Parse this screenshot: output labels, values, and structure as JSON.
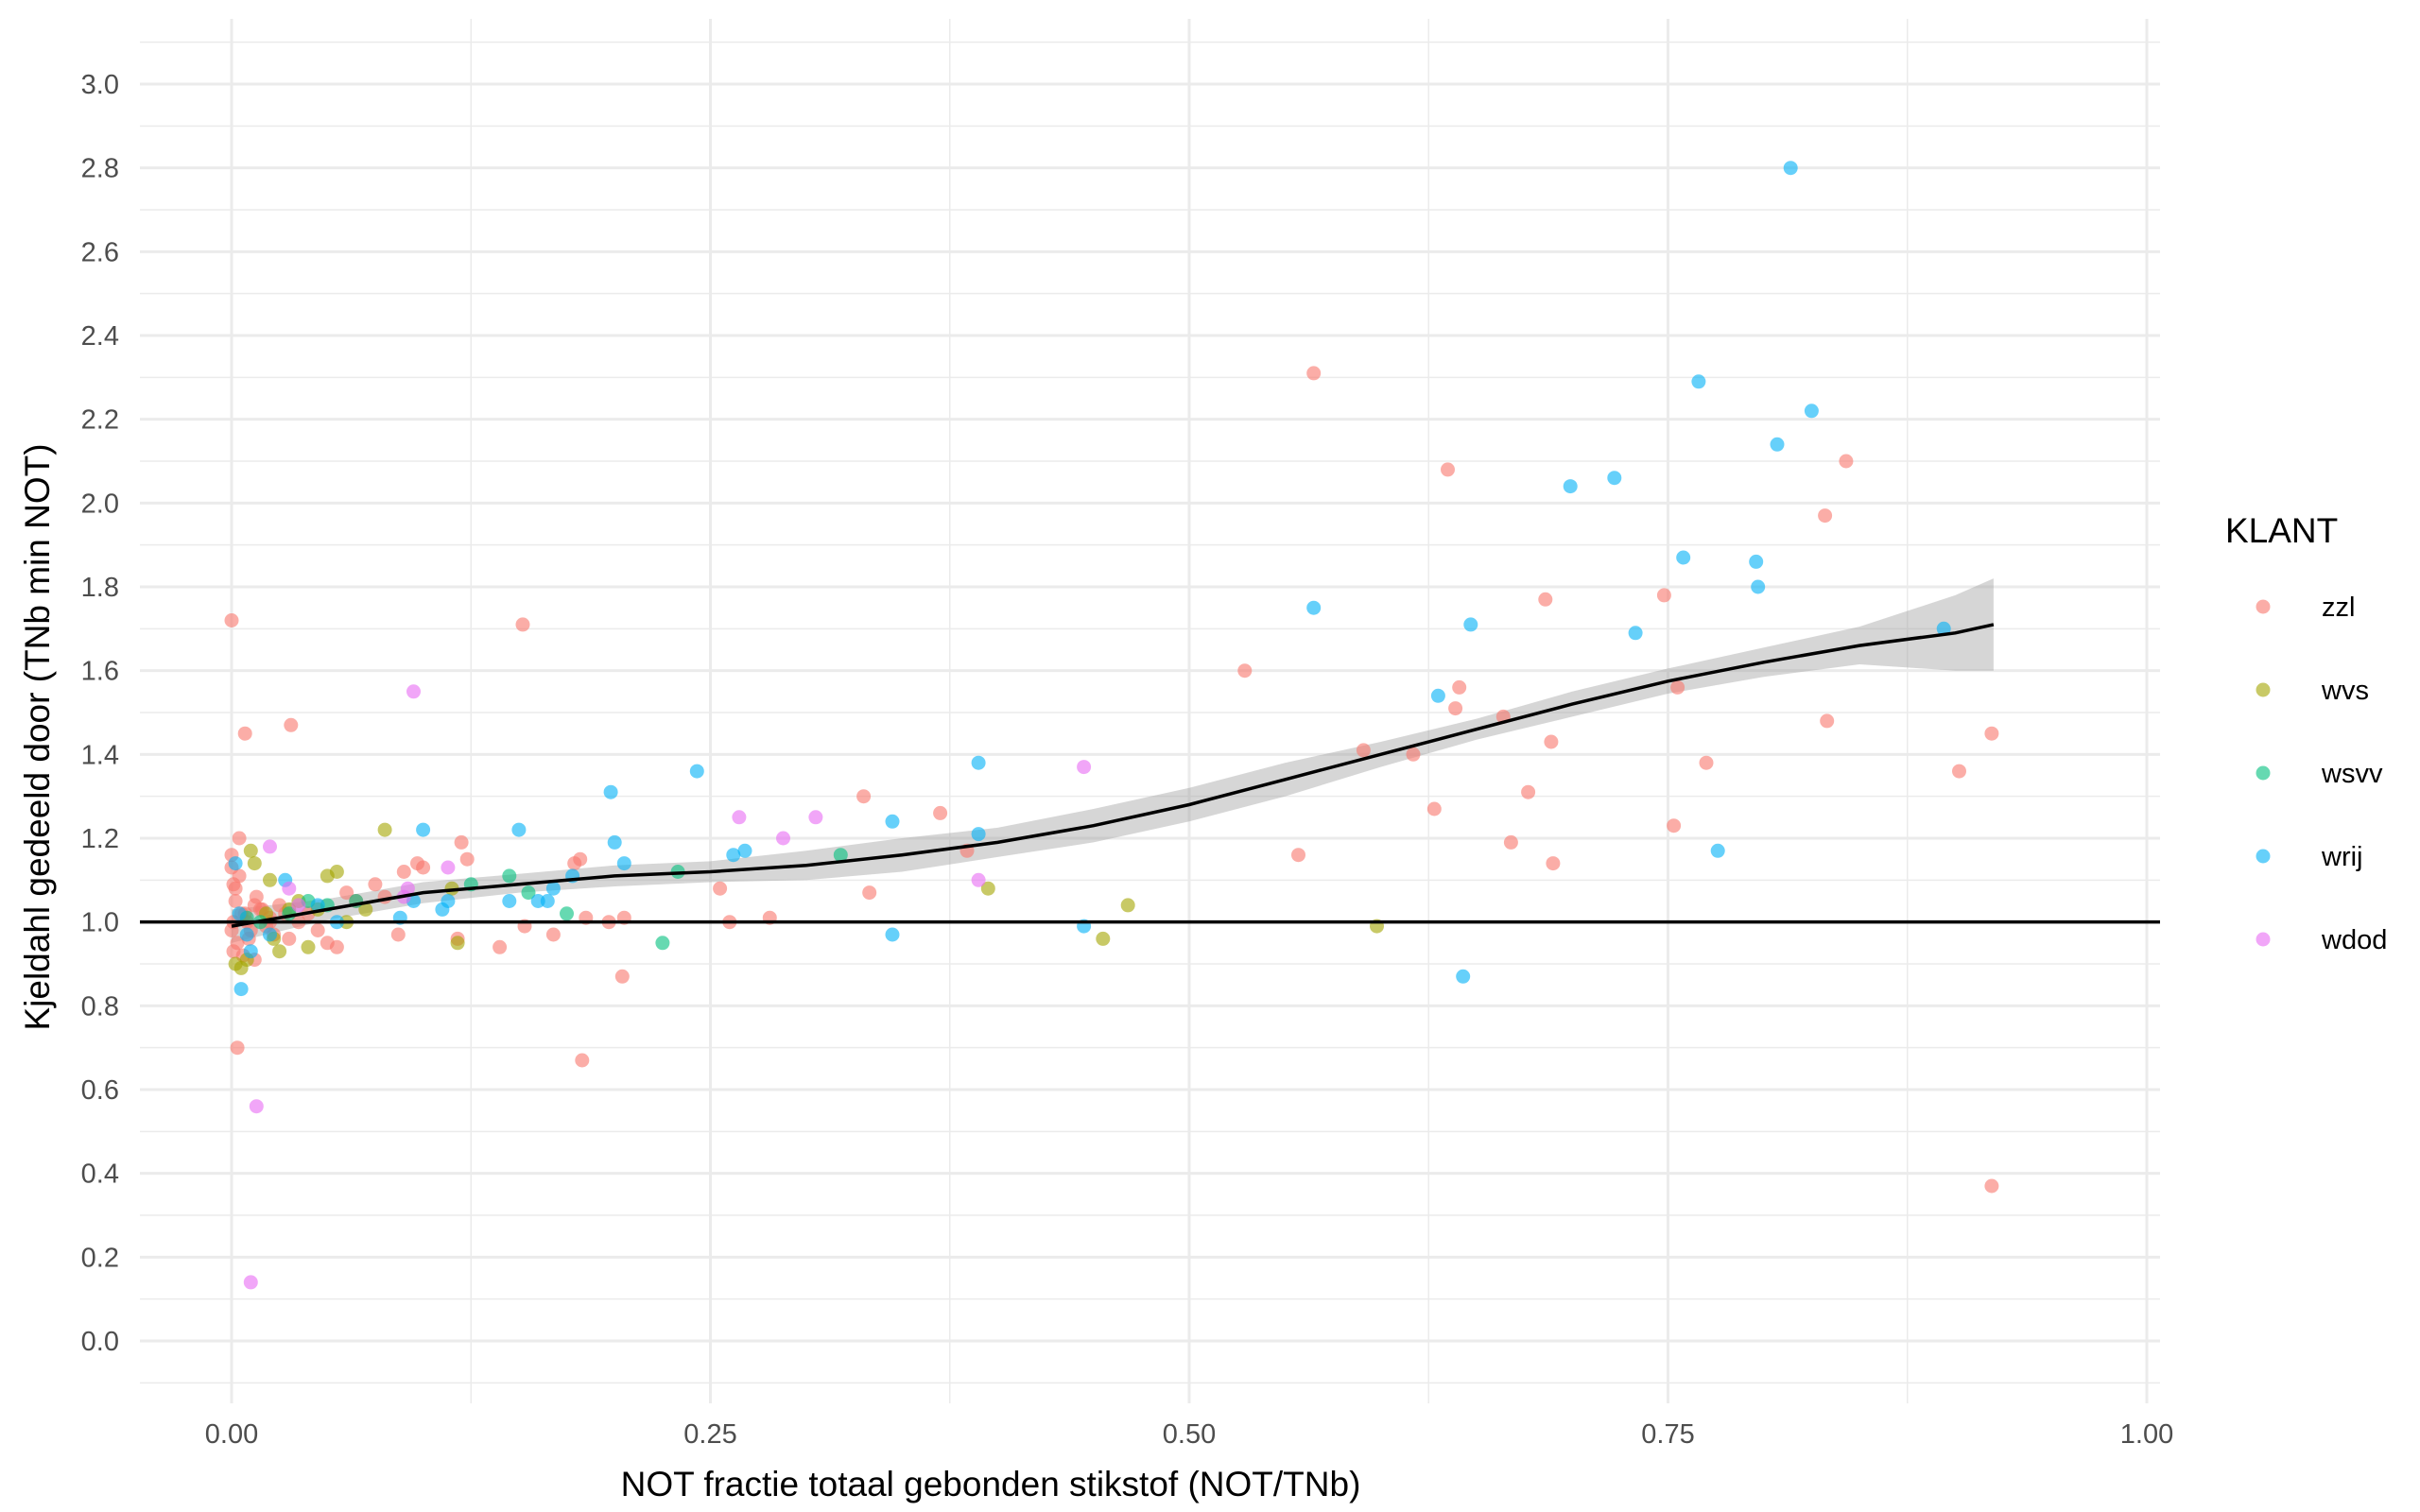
{
  "chart_data": {
    "type": "scatter",
    "xlabel": "NOT fractie totaal gebonden stikstof (NOT/TNb)",
    "ylabel": "Kjeldahl gedeeld door (TNb min NOT)",
    "xlim": [
      -0.05,
      1.0
    ],
    "ylim": [
      -0.1,
      3.1
    ],
    "x_ticks": [
      "0.00",
      "0.25",
      "0.50",
      "0.75",
      "1.00"
    ],
    "y_ticks": [
      "0.0",
      "0.2",
      "0.4",
      "0.6",
      "0.8",
      "1.0",
      "1.2",
      "1.4",
      "1.6",
      "1.8",
      "2.0",
      "2.2",
      "2.4",
      "2.6",
      "2.8",
      "3.0"
    ],
    "grid": true,
    "reference_line_y": 1.0,
    "legend": {
      "title": "KLANT",
      "position": "right",
      "entries": [
        {
          "name": "zzl",
          "color": "#F8766D"
        },
        {
          "name": "wvs",
          "color": "#A3A500"
        },
        {
          "name": "wsvv",
          "color": "#00BF7D"
        },
        {
          "name": "wrij",
          "color": "#00B0F6"
        },
        {
          "name": "wdod",
          "color": "#E76BF3"
        }
      ]
    },
    "smooth": {
      "x": [
        0.0,
        0.05,
        0.1,
        0.15,
        0.2,
        0.25,
        0.3,
        0.35,
        0.4,
        0.45,
        0.5,
        0.55,
        0.6,
        0.65,
        0.7,
        0.75,
        0.8,
        0.85,
        0.9,
        0.92
      ],
      "y": [
        0.99,
        1.03,
        1.07,
        1.09,
        1.11,
        1.12,
        1.135,
        1.16,
        1.19,
        1.23,
        1.28,
        1.34,
        1.4,
        1.46,
        1.52,
        1.575,
        1.62,
        1.66,
        1.69,
        1.71
      ],
      "lower": [
        0.95,
        1.005,
        1.045,
        1.07,
        1.085,
        1.095,
        1.1,
        1.12,
        1.155,
        1.19,
        1.24,
        1.3,
        1.37,
        1.435,
        1.49,
        1.545,
        1.585,
        1.615,
        1.6,
        1.6
      ],
      "upper": [
        1.03,
        1.055,
        1.095,
        1.115,
        1.135,
        1.145,
        1.17,
        1.2,
        1.225,
        1.27,
        1.32,
        1.38,
        1.43,
        1.485,
        1.55,
        1.605,
        1.655,
        1.705,
        1.78,
        1.82
      ]
    },
    "series": [
      {
        "name": "zzl",
        "x": [
          0.0,
          0.003,
          0.007,
          0.031,
          0.152,
          0.565,
          0.635,
          0.843,
          0.832,
          0.748,
          0.686,
          0.529,
          0.641,
          0.639,
          0.664,
          0.833,
          0.591,
          0.617,
          0.689,
          0.755,
          0.919,
          0.902,
          0.77,
          0.677,
          0.33,
          0.37,
          0.557,
          0.628,
          0.668,
          0.69,
          0.753,
          0.384,
          0.255,
          0.333,
          0.26,
          0.281,
          0.205,
          0.185,
          0.197,
          0.182,
          0.179,
          0.12,
          0.123,
          0.097,
          0.09,
          0.14,
          0.168,
          0.153,
          0.204,
          0.183,
          0.919,
          0.004,
          0.0,
          0.001,
          0.002,
          0.005,
          0.008,
          0.01,
          0.013,
          0.015,
          0.018,
          0.02,
          0.022,
          0.025,
          0.028,
          0.03,
          0.035,
          0.04,
          0.045,
          0.05,
          0.055,
          0.06,
          0.065,
          0.075,
          0.08,
          0.087,
          0.1,
          0.118,
          0.001,
          0.003,
          0.006,
          0.009,
          0.012,
          0.016,
          0.02,
          0.0,
          0.002,
          0.004,
          0.0,
          0.001,
          0.007,
          0.012
        ],
        "y": [
          1.72,
          0.7,
          1.45,
          1.47,
          1.71,
          2.31,
          2.08,
          2.1,
          1.97,
          1.78,
          1.77,
          1.6,
          1.56,
          1.51,
          1.49,
          1.48,
          1.41,
          1.4,
          1.43,
          1.56,
          1.45,
          1.36,
          1.38,
          1.31,
          1.3,
          1.26,
          1.16,
          1.27,
          1.19,
          1.14,
          1.23,
          1.17,
          1.08,
          1.07,
          1.0,
          1.01,
          1.01,
          1.01,
          1.0,
          1.15,
          1.14,
          1.19,
          1.15,
          1.14,
          1.12,
          0.94,
          0.97,
          0.99,
          0.87,
          0.67,
          0.37,
          1.2,
          1.13,
          1.09,
          1.05,
          1.02,
          1.0,
          0.98,
          1.06,
          1.03,
          0.99,
          1.01,
          0.97,
          1.04,
          1.02,
          0.96,
          1.0,
          1.02,
          0.98,
          0.95,
          0.94,
          1.07,
          1.05,
          1.09,
          1.06,
          0.97,
          1.13,
          0.96,
          0.93,
          0.95,
          0.92,
          0.96,
          0.91,
          1.03,
          1.0,
          1.16,
          1.08,
          1.11,
          0.98,
          1.0,
          1.02,
          1.04
        ]
      },
      {
        "name": "wvs",
        "x": [
          0.08,
          0.395,
          0.468,
          0.455,
          0.598,
          0.118,
          0.005,
          0.01,
          0.02,
          0.03,
          0.04,
          0.05,
          0.055,
          0.06,
          0.07,
          0.008,
          0.012,
          0.018,
          0.025,
          0.035,
          0.045,
          0.002,
          0.115,
          0.022
        ],
        "y": [
          1.22,
          1.08,
          1.04,
          0.96,
          0.99,
          0.95,
          0.89,
          1.17,
          1.1,
          1.03,
          0.94,
          1.11,
          1.12,
          1.0,
          1.03,
          0.91,
          1.14,
          1.02,
          0.93,
          1.05,
          1.03,
          0.9,
          1.08,
          0.96
        ]
      },
      {
        "name": "wsvv",
        "x": [
          0.318,
          0.233,
          0.225,
          0.145,
          0.155,
          0.125,
          0.065,
          0.04,
          0.03,
          0.015,
          0.05,
          0.175,
          0.008
        ],
        "y": [
          1.16,
          1.12,
          0.95,
          1.11,
          1.07,
          1.09,
          1.05,
          1.05,
          1.02,
          1.0,
          1.04,
          1.02,
          1.01
        ]
      },
      {
        "name": "wrij",
        "x": [
          0.814,
          0.766,
          0.825,
          0.807,
          0.722,
          0.699,
          0.758,
          0.796,
          0.797,
          0.565,
          0.647,
          0.733,
          0.894,
          0.63,
          0.39,
          0.39,
          0.243,
          0.198,
          0.345,
          0.268,
          0.262,
          0.2,
          0.205,
          0.15,
          0.1,
          0.11,
          0.168,
          0.178,
          0.165,
          0.16,
          0.145,
          0.345,
          0.445,
          0.643,
          0.776,
          0.005,
          0.01,
          0.02,
          0.028,
          0.088,
          0.095,
          0.055,
          0.113,
          0.008,
          0.004,
          0.002,
          0.045
        ],
        "y": [
          2.8,
          2.29,
          2.22,
          2.14,
          2.06,
          2.04,
          1.87,
          1.86,
          1.8,
          1.75,
          1.71,
          1.69,
          1.7,
          1.54,
          1.38,
          1.21,
          1.36,
          1.31,
          1.24,
          1.17,
          1.16,
          1.19,
          1.14,
          1.22,
          1.22,
          1.03,
          1.08,
          1.11,
          1.05,
          1.05,
          1.05,
          0.97,
          0.99,
          0.87,
          1.17,
          0.84,
          0.93,
          0.97,
          1.1,
          1.01,
          1.05,
          1.0,
          1.05,
          0.97,
          1.02,
          1.14,
          1.04
        ]
      },
      {
        "name": "wdod",
        "x": [
          0.095,
          0.445,
          0.265,
          0.305,
          0.288,
          0.39,
          0.02,
          0.03,
          0.113,
          0.09,
          0.013,
          0.01,
          0.035,
          0.092
        ],
        "y": [
          1.55,
          1.37,
          1.25,
          1.25,
          1.2,
          1.1,
          1.18,
          1.08,
          1.13,
          1.06,
          0.56,
          0.14,
          1.04,
          1.08
        ]
      }
    ]
  }
}
